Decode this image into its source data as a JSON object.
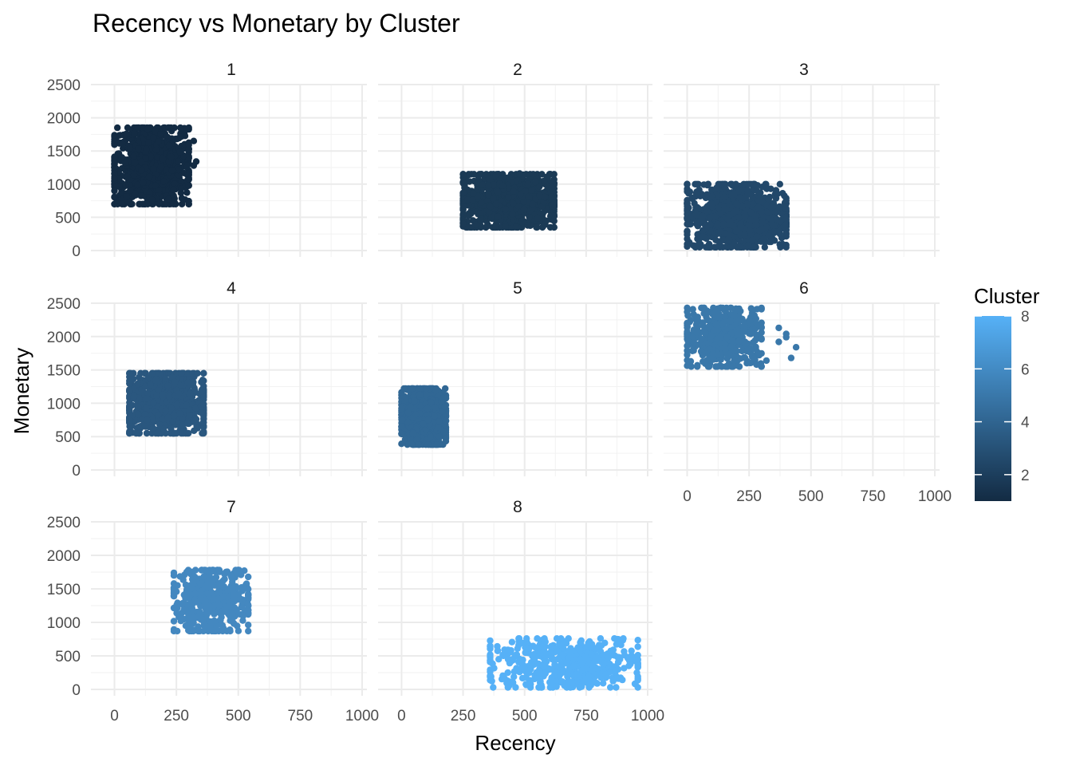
{
  "chart_data": {
    "type": "scatter",
    "title": "Recency vs Monetary by Cluster",
    "xlabel": "Recency",
    "ylabel": "Monetary",
    "xlim": [
      -50,
      1000
    ],
    "ylim": [
      0,
      2500
    ],
    "x_ticks": [
      0,
      250,
      500,
      750,
      1000
    ],
    "y_ticks": [
      0,
      500,
      1000,
      1500,
      2000,
      2500
    ],
    "grid": true,
    "legend": {
      "title": "Cluster",
      "type": "continuous",
      "range": [
        1,
        8
      ],
      "ticks": [
        2,
        4,
        6,
        8
      ],
      "low_color": "#132B43",
      "high_color": "#56B1F7",
      "placement": "right"
    },
    "panels": [
      {
        "label": "1",
        "cluster": 1,
        "color": "#132B43",
        "recency_range": [
          0,
          300
        ],
        "monetary_range": [
          700,
          1850
        ],
        "points_approx": 1200,
        "outliers": [
          [
            290,
            1830
          ],
          [
            320,
            1650
          ],
          [
            330,
            1340
          ],
          [
            320,
            1280
          ]
        ]
      },
      {
        "label": "2",
        "cluster": 2,
        "color": "#1B3A55",
        "recency_range": [
          250,
          620
        ],
        "monetary_range": [
          350,
          1150
        ],
        "points_approx": 1000,
        "outliers": [
          [
            610,
            950
          ],
          [
            480,
            1160
          ],
          [
            300,
            390
          ]
        ]
      },
      {
        "label": "3",
        "cluster": 3,
        "color": "#22486A",
        "recency_range": [
          0,
          400
        ],
        "monetary_range": [
          50,
          1000
        ],
        "points_approx": 900,
        "outliers": [
          [
            400,
            390
          ],
          [
            340,
            160
          ],
          [
            270,
            1000
          ]
        ]
      },
      {
        "label": "4",
        "cluster": 4,
        "color": "#2A577F",
        "recency_range": [
          60,
          360
        ],
        "monetary_range": [
          550,
          1450
        ],
        "points_approx": 800,
        "outliers": [
          [
            60,
            1450
          ],
          [
            360,
            1090
          ],
          [
            330,
            760
          ]
        ]
      },
      {
        "label": "5",
        "cluster": 5,
        "color": "#316794",
        "recency_range": [
          0,
          180
        ],
        "monetary_range": [
          380,
          1220
        ],
        "points_approx": 700,
        "outliers": [
          [
            175,
            950
          ],
          [
            10,
            1220
          ]
        ]
      },
      {
        "label": "6",
        "cluster": 6,
        "color": "#3A78AA",
        "recency_range": [
          0,
          300
        ],
        "monetary_range": [
          1550,
          2430
        ],
        "points_approx": 450,
        "outliers": [
          [
            40,
            2290
          ],
          [
            75,
            2360
          ],
          [
            150,
            2400
          ],
          [
            175,
            2430
          ],
          [
            215,
            2380
          ],
          [
            250,
            2240
          ],
          [
            270,
            1670
          ],
          [
            280,
            1580
          ],
          [
            320,
            1640
          ],
          [
            370,
            1920
          ],
          [
            370,
            2130
          ],
          [
            400,
            1990
          ],
          [
            400,
            2040
          ],
          [
            420,
            1680
          ],
          [
            440,
            1840
          ],
          [
            210,
            1930
          ]
        ]
      },
      {
        "label": "7",
        "cluster": 7,
        "color": "#4488C0",
        "recency_range": [
          240,
          540
        ],
        "monetary_range": [
          870,
          1780
        ],
        "points_approx": 450,
        "outliers": [
          [
            370,
            1760
          ],
          [
            500,
            1760
          ],
          [
            470,
            1700
          ],
          [
            520,
            1100
          ],
          [
            340,
            870
          ],
          [
            260,
            1080
          ]
        ]
      },
      {
        "label": "8",
        "cluster": 8,
        "color": "#56B1F7",
        "recency_range": [
          360,
          960
        ],
        "monetary_range": [
          30,
          760
        ],
        "points_approx": 500,
        "outliers": [
          [
            930,
            380
          ],
          [
            950,
            80
          ],
          [
            960,
            30
          ],
          [
            870,
            280
          ],
          [
            860,
            130
          ],
          [
            790,
            100
          ],
          [
            760,
            190
          ],
          [
            730,
            40
          ],
          [
            740,
            420
          ],
          [
            700,
            350
          ],
          [
            680,
            300
          ],
          [
            650,
            120
          ],
          [
            570,
            30
          ],
          [
            830,
            220
          ],
          [
            880,
            300
          ]
        ]
      }
    ]
  }
}
